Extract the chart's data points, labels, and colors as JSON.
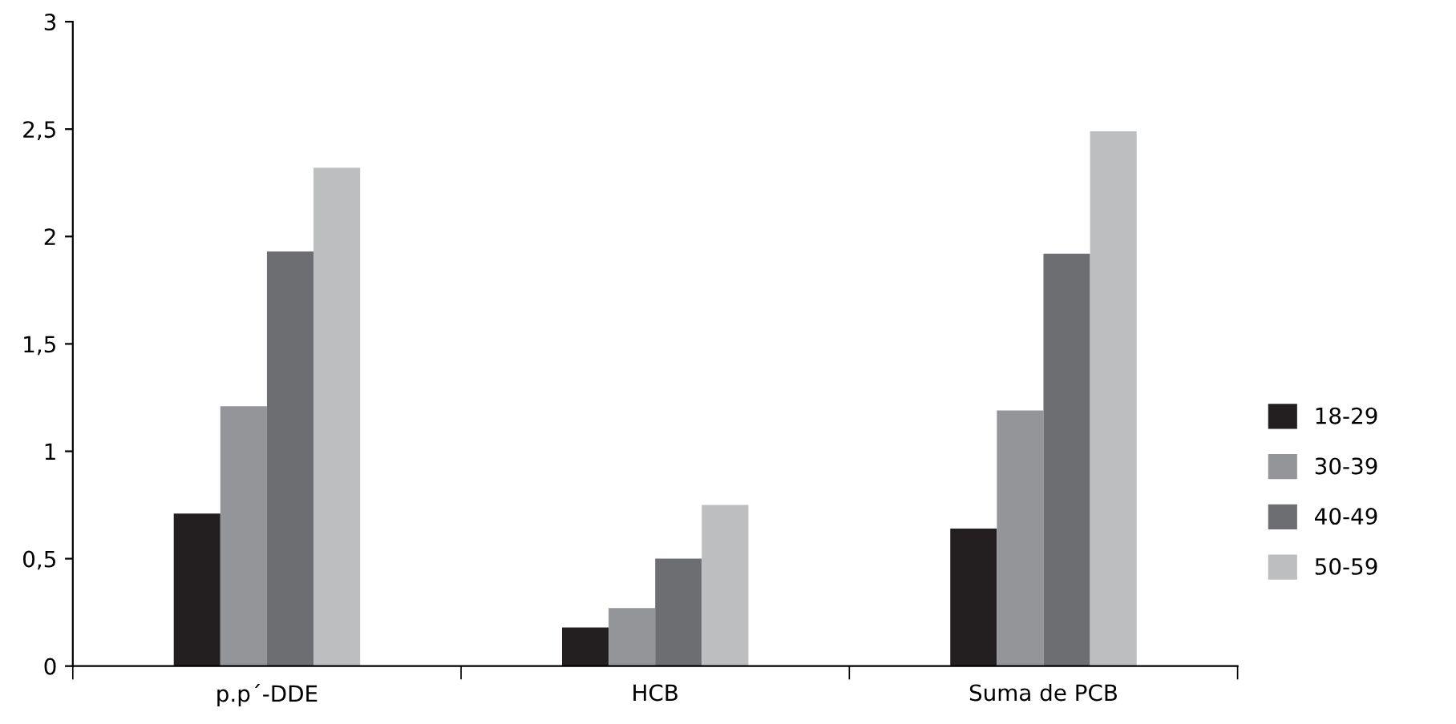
{
  "chart_data": {
    "type": "bar",
    "categories": [
      "p.p´-DDE",
      "HCB",
      "Suma de PCB"
    ],
    "series": [
      {
        "name": "18-29",
        "color": "#231f20",
        "values": [
          0.71,
          0.18,
          0.64
        ]
      },
      {
        "name": "30-39",
        "color": "#939598",
        "values": [
          1.21,
          0.27,
          1.19
        ]
      },
      {
        "name": "40-49",
        "color": "#6d6e71",
        "values": [
          1.93,
          0.5,
          1.92
        ]
      },
      {
        "name": "50-59",
        "color": "#bcbec0",
        "values": [
          2.32,
          0.75,
          2.49
        ]
      }
    ],
    "ylim": [
      0,
      3
    ],
    "yticks": [
      0,
      {
        "value": 0.5,
        "label": "0,5"
      },
      1,
      {
        "value": 1.5,
        "label": "1,5"
      },
      2,
      {
        "value": 2.5,
        "label": "2,5"
      },
      3
    ],
    "grid": false,
    "legend": "right"
  }
}
